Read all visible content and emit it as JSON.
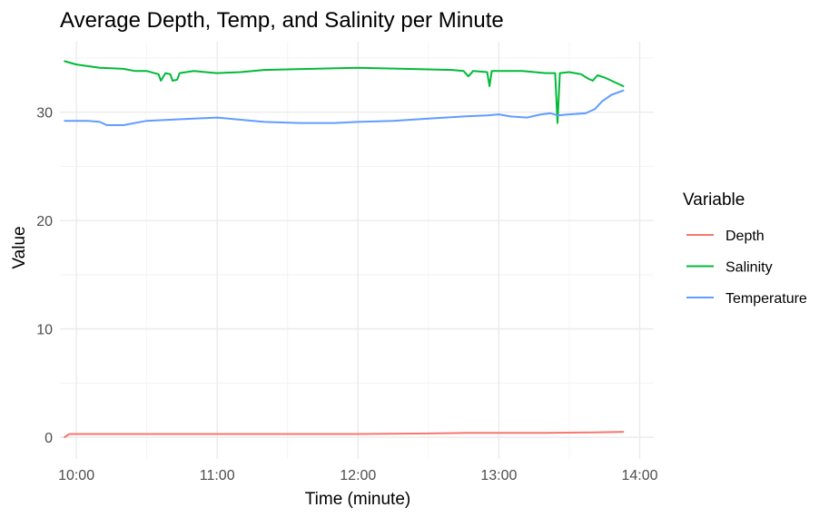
{
  "chart_data": {
    "type": "line",
    "title": "Average Depth, Temp, and Salinity per Minute",
    "xlabel": "Time (minute)",
    "ylabel": "Value",
    "x_ticks": [
      "10:00",
      "11:00",
      "12:00",
      "13:00",
      "14:00"
    ],
    "y_ticks": [
      "0",
      "10",
      "20",
      "30"
    ],
    "xlim": [
      "09:53",
      "14:06"
    ],
    "ylim": [
      -2,
      36.5
    ],
    "grid": true,
    "legend": {
      "title": "Variable",
      "position": "right"
    },
    "series": [
      {
        "name": "Depth",
        "color": "#F8766D",
        "points": [
          [
            "09:55",
            0.0
          ],
          [
            "09:57",
            0.3
          ],
          [
            "10:05",
            0.3
          ],
          [
            "10:30",
            0.3
          ],
          [
            "11:00",
            0.3
          ],
          [
            "11:30",
            0.3
          ],
          [
            "12:00",
            0.3
          ],
          [
            "12:30",
            0.35
          ],
          [
            "12:45",
            0.4
          ],
          [
            "13:00",
            0.4
          ],
          [
            "13:20",
            0.4
          ],
          [
            "13:40",
            0.45
          ],
          [
            "13:53",
            0.5
          ]
        ]
      },
      {
        "name": "Salinity",
        "color": "#00BA38",
        "points": [
          [
            "09:55",
            34.7
          ],
          [
            "10:00",
            34.4
          ],
          [
            "10:10",
            34.1
          ],
          [
            "10:20",
            34.0
          ],
          [
            "10:25",
            33.8
          ],
          [
            "10:30",
            33.8
          ],
          [
            "10:35",
            33.5
          ],
          [
            "10:36",
            32.9
          ],
          [
            "10:38",
            33.6
          ],
          [
            "10:40",
            33.5
          ],
          [
            "10:41",
            32.9
          ],
          [
            "10:43",
            33.0
          ],
          [
            "10:44",
            33.6
          ],
          [
            "10:50",
            33.8
          ],
          [
            "10:55",
            33.7
          ],
          [
            "11:00",
            33.6
          ],
          [
            "11:10",
            33.7
          ],
          [
            "11:20",
            33.9
          ],
          [
            "11:40",
            34.0
          ],
          [
            "12:00",
            34.1
          ],
          [
            "12:20",
            34.0
          ],
          [
            "12:40",
            33.9
          ],
          [
            "12:45",
            33.8
          ],
          [
            "12:47",
            33.3
          ],
          [
            "12:49",
            33.8
          ],
          [
            "12:55",
            33.7
          ],
          [
            "12:56",
            32.4
          ],
          [
            "12:57",
            33.8
          ],
          [
            "13:10",
            33.8
          ],
          [
            "13:20",
            33.6
          ],
          [
            "13:24",
            33.6
          ],
          [
            "13:25",
            29.0
          ],
          [
            "13:26",
            33.6
          ],
          [
            "13:30",
            33.7
          ],
          [
            "13:35",
            33.5
          ],
          [
            "13:38",
            33.1
          ],
          [
            "13:40",
            32.9
          ],
          [
            "13:42",
            33.4
          ],
          [
            "13:45",
            33.2
          ],
          [
            "13:48",
            32.9
          ],
          [
            "13:53",
            32.4
          ]
        ]
      },
      {
        "name": "Temperature",
        "color": "#619CFF",
        "points": [
          [
            "09:55",
            29.2
          ],
          [
            "10:05",
            29.2
          ],
          [
            "10:10",
            29.1
          ],
          [
            "10:13",
            28.8
          ],
          [
            "10:20",
            28.8
          ],
          [
            "10:30",
            29.2
          ],
          [
            "10:40",
            29.3
          ],
          [
            "10:50",
            29.4
          ],
          [
            "11:00",
            29.5
          ],
          [
            "11:05",
            29.4
          ],
          [
            "11:20",
            29.1
          ],
          [
            "11:35",
            29.0
          ],
          [
            "11:50",
            29.0
          ],
          [
            "12:00",
            29.1
          ],
          [
            "12:15",
            29.2
          ],
          [
            "12:30",
            29.4
          ],
          [
            "12:45",
            29.6
          ],
          [
            "12:55",
            29.7
          ],
          [
            "13:00",
            29.8
          ],
          [
            "13:05",
            29.6
          ],
          [
            "13:12",
            29.5
          ],
          [
            "13:18",
            29.8
          ],
          [
            "13:22",
            29.9
          ],
          [
            "13:25",
            29.7
          ],
          [
            "13:30",
            29.8
          ],
          [
            "13:37",
            29.9
          ],
          [
            "13:41",
            30.3
          ],
          [
            "13:44",
            31.0
          ],
          [
            "13:48",
            31.6
          ],
          [
            "13:53",
            32.0
          ]
        ]
      }
    ]
  }
}
